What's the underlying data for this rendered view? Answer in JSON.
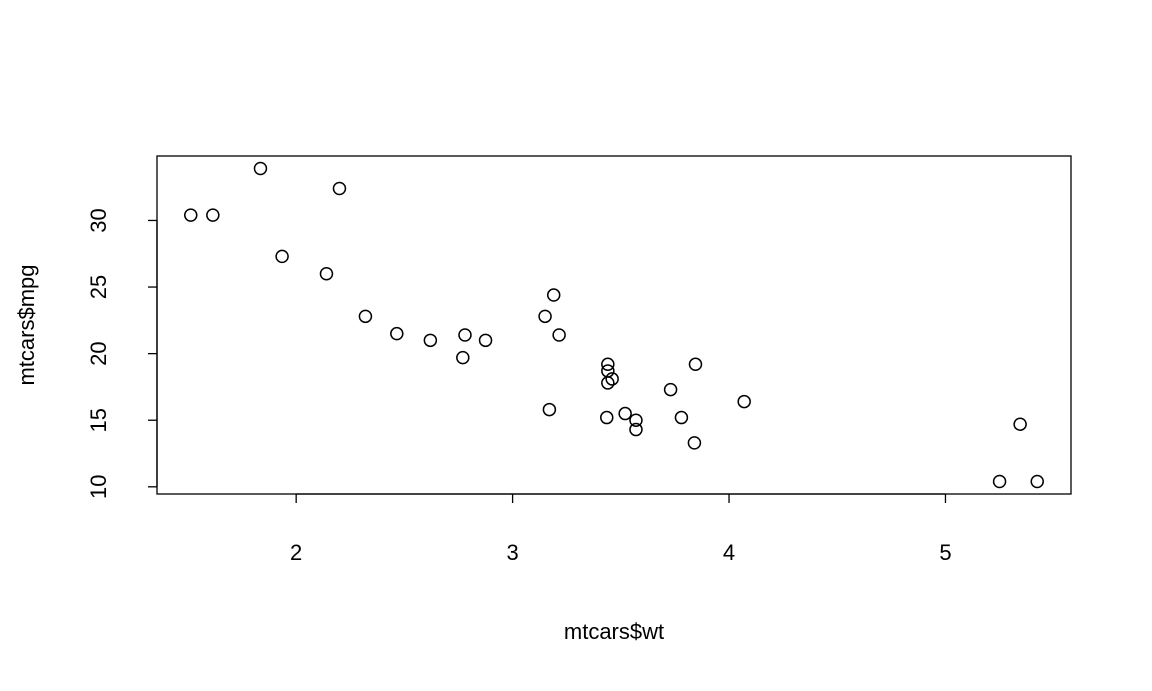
{
  "chart_data": {
    "type": "scatter",
    "x_label": "mtcars$wt",
    "y_label": "mtcars$mpg",
    "x": [
      2.62,
      2.875,
      2.32,
      3.215,
      3.44,
      3.46,
      3.57,
      3.19,
      3.15,
      3.44,
      3.44,
      4.07,
      3.73,
      3.78,
      5.25,
      5.424,
      5.345,
      2.2,
      1.615,
      1.835,
      2.465,
      3.52,
      3.435,
      3.84,
      3.845,
      1.935,
      2.14,
      1.513,
      3.17,
      2.77,
      3.57,
      2.78
    ],
    "values": [
      21.0,
      21.0,
      22.8,
      21.4,
      18.7,
      18.1,
      14.3,
      24.4,
      22.8,
      19.2,
      17.8,
      16.4,
      17.3,
      15.2,
      10.4,
      10.4,
      14.7,
      32.4,
      30.4,
      33.9,
      21.5,
      15.5,
      15.2,
      13.3,
      19.2,
      27.3,
      26.0,
      30.4,
      15.8,
      19.7,
      15.0,
      21.4
    ],
    "color": "#000000",
    "xlim": [
      1.357,
      5.58
    ],
    "ylim": [
      9.46,
      34.84
    ],
    "xticks": [
      2,
      3,
      4,
      5
    ],
    "yticks": [
      10,
      15,
      20,
      25,
      30
    ],
    "grid": false
  }
}
